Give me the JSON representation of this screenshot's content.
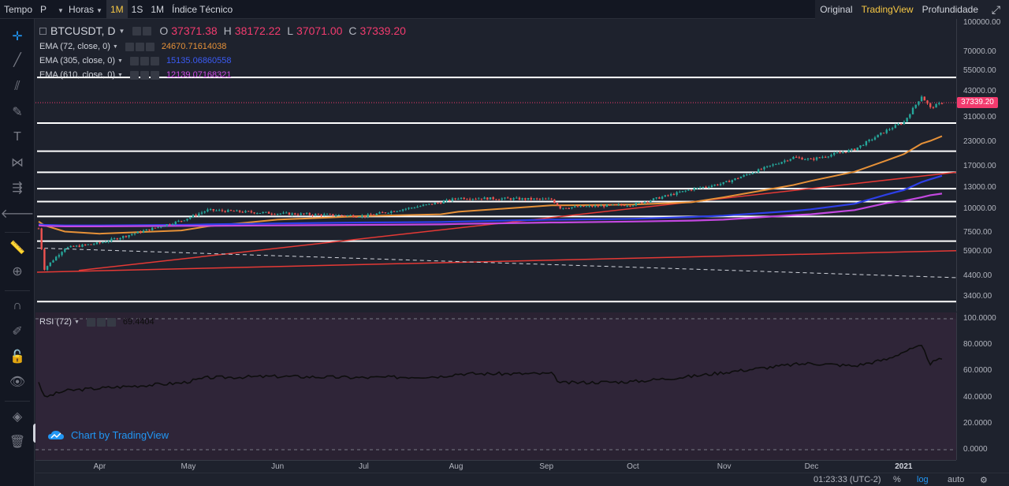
{
  "toolbar": {
    "items": [
      "Tempo",
      "P",
      "Horas",
      "1M",
      "1S",
      "1M",
      "Índice Técnico"
    ],
    "right": [
      "Original",
      "TradingView",
      "Profundidade"
    ]
  },
  "legend": {
    "symbol": "BTCUSDT, D",
    "o_label": "O",
    "o": "37371.38",
    "h_label": "H",
    "h": "38172.22",
    "l_label": "L",
    "l": "37071.00",
    "c_label": "C",
    "c": "37339.20",
    "ema72_label": "EMA (72, close, 0)",
    "ema72": "24670.71614038",
    "ema305_label": "EMA (305, close, 0)",
    "ema305": "15135.06860558",
    "ema610_label": "EMA (610, close, 0)",
    "ema610": "12139.07168321",
    "rsi_label": "RSI (72)",
    "rsi": "69.4404"
  },
  "last_price": "37339.20",
  "watermark": "Chart by TradingView",
  "bottom": {
    "time": "01:23:33 (UTC-2)",
    "pct": "%",
    "log": "log",
    "auto": "auto"
  },
  "colors": {
    "up": "#26a69a",
    "down": "#ef5350",
    "ema72": "#e69138",
    "ema305": "#2d3fe8",
    "ema610": "#c348e0",
    "trend": "#e53935",
    "hline": "#ffffff",
    "rsi": "#0d0d0d"
  },
  "chart_data": [
    {
      "type": "line",
      "title": "BTCUSDT, D",
      "y_scale": "log",
      "y_ticks": [
        "100000.00",
        "70000.00",
        "55000.00",
        "43000.00",
        "31000.00",
        "23000.00",
        "17000.00",
        "13000.00",
        "10000.00",
        "7500.00",
        "5900.00",
        "4400.00",
        "3400.00"
      ],
      "x_ticks": [
        "Apr",
        "May",
        "Jun",
        "Jul",
        "Aug",
        "Sep",
        "Oct",
        "Nov",
        "Dec",
        "2021"
      ],
      "x": [
        "2020-03-11",
        "2020-03-13",
        "2020-03-20",
        "2020-04-01",
        "2020-04-29",
        "2020-05-08",
        "2020-06-01",
        "2020-07-01",
        "2020-07-27",
        "2020-08-02",
        "2020-09-03",
        "2020-09-06",
        "2020-10-01",
        "2020-10-21",
        "2020-11-01",
        "2020-11-25",
        "2020-12-01",
        "2020-12-16",
        "2020-12-27",
        "2021-01-02",
        "2021-01-08",
        "2021-01-11",
        "2021-01-15"
      ],
      "series": [
        {
          "name": "BTCUSDT",
          "values": [
            7900,
            4800,
            6200,
            6600,
            8700,
            9900,
            9500,
            9200,
            10900,
            11500,
            11300,
            10200,
            10600,
            12800,
            13800,
            19000,
            18500,
            21000,
            26500,
            29500,
            40500,
            35000,
            37339.2
          ]
        },
        {
          "name": "EMA (72, close, 0)",
          "values": [
            8600,
            8200,
            7600,
            7400,
            7700,
            8100,
            8800,
            9200,
            9400,
            9700,
            10500,
            10500,
            10600,
            10900,
            11600,
            13500,
            14200,
            15900,
            18300,
            19800,
            22500,
            23300,
            24670.7
          ]
        },
        {
          "name": "EMA (305, close, 0)",
          "values": [
            8300,
            8250,
            8200,
            8200,
            8250,
            8300,
            8400,
            8500,
            8550,
            8600,
            8800,
            8800,
            8900,
            9100,
            9250,
            9800,
            10000,
            10700,
            12000,
            12700,
            14000,
            14500,
            15135.1
          ]
        },
        {
          "name": "EMA (610, close, 0)",
          "values": [
            8200,
            8150,
            8100,
            8100,
            8150,
            8150,
            8200,
            8250,
            8300,
            8350,
            8500,
            8500,
            8600,
            8700,
            8800,
            9300,
            9400,
            9900,
            10800,
            11100,
            11600,
            11900,
            12139.1
          ]
        }
      ]
    },
    {
      "type": "line",
      "title": "RSI (72)",
      "y_ticks": [
        "100.0000",
        "80.0000",
        "60.0000",
        "40.0000",
        "20.0000",
        "0.0000"
      ],
      "ylim": [
        0,
        100
      ],
      "x": [
        "2020-03-11",
        "2020-03-13",
        "2020-03-20",
        "2020-04-01",
        "2020-04-29",
        "2020-05-08",
        "2020-06-01",
        "2020-07-01",
        "2020-07-27",
        "2020-08-02",
        "2020-09-03",
        "2020-09-06",
        "2020-10-01",
        "2020-10-21",
        "2020-11-01",
        "2020-11-25",
        "2020-12-01",
        "2020-12-16",
        "2020-12-27",
        "2021-01-02",
        "2021-01-08",
        "2021-01-11",
        "2021-01-15"
      ],
      "series": [
        {
          "name": "RSI (72)",
          "values": [
            52,
            40,
            45,
            47,
            51,
            55,
            56,
            55,
            56,
            58,
            58,
            51,
            52,
            56,
            59,
            65,
            66,
            64,
            69,
            75,
            79,
            66,
            69.44
          ]
        }
      ]
    }
  ]
}
